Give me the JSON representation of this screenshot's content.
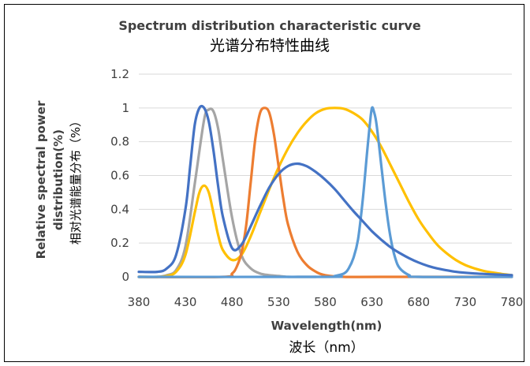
{
  "chart_data": {
    "type": "line",
    "title": "Spectrum distribution characteristic curve",
    "subtitle": "光谱分布特性曲线",
    "xlabel": "Wavelength(nm)",
    "xlabel_cn": "波长（nm）",
    "ylabel_line1": "Relative spectral power",
    "ylabel_line2": "distribution(%)",
    "ylabel_cn": "相对光谱能量分布（%）",
    "xlim": [
      380,
      780
    ],
    "ylim": [
      0,
      1.2
    ],
    "x_ticks": [
      "380",
      "430",
      "480",
      "530",
      "580",
      "630",
      "680",
      "730",
      "780"
    ],
    "y_ticks": [
      "0",
      "0.2",
      "0.4",
      "0.6",
      "0.8",
      "1",
      "1.2"
    ],
    "grid": "horizontal",
    "legend": "none",
    "colors": {
      "gray": "#a5a5a5",
      "yellow": "#ffc000",
      "orange": "#ed7d31",
      "light_blue": "#5b9bd5",
      "dark_blue": "#4472c4"
    },
    "series": [
      {
        "color": "#a5a5a5",
        "x": [
          380,
          400,
          410,
          420,
          430,
          440,
          450,
          455,
          460,
          465,
          470,
          480,
          490,
          500,
          510,
          520,
          530,
          540,
          550,
          560,
          570
        ],
        "y": [
          0,
          0,
          0.01,
          0.04,
          0.18,
          0.55,
          0.93,
          0.99,
          0.98,
          0.88,
          0.7,
          0.35,
          0.13,
          0.05,
          0.02,
          0.01,
          0.005,
          0,
          0,
          0,
          0
        ]
      },
      {
        "color": "#ffc000",
        "x": [
          380,
          400,
          410,
          420,
          430,
          440,
          445,
          450,
          455,
          460,
          465,
          470,
          480,
          490,
          500,
          510,
          520,
          530,
          540,
          550,
          560,
          570,
          580,
          590,
          600,
          610,
          620,
          630,
          640,
          650,
          660,
          670,
          680,
          690,
          700,
          710,
          720,
          730,
          740,
          750,
          760,
          770,
          780
        ],
        "y": [
          0,
          0,
          0.005,
          0.03,
          0.13,
          0.38,
          0.5,
          0.54,
          0.5,
          0.38,
          0.25,
          0.16,
          0.1,
          0.13,
          0.24,
          0.38,
          0.52,
          0.65,
          0.76,
          0.85,
          0.92,
          0.97,
          0.995,
          1.0,
          0.995,
          0.97,
          0.93,
          0.86,
          0.77,
          0.66,
          0.55,
          0.44,
          0.34,
          0.26,
          0.19,
          0.14,
          0.1,
          0.07,
          0.05,
          0.035,
          0.025,
          0.017,
          0.01
        ]
      },
      {
        "color": "#ed7d31",
        "x": [
          380,
          470,
          480,
          485,
          490,
          495,
          500,
          505,
          510,
          515,
          520,
          525,
          530,
          535,
          540,
          550,
          560,
          570,
          580,
          600,
          640,
          780
        ],
        "y": [
          0,
          0,
          0.02,
          0.06,
          0.14,
          0.3,
          0.56,
          0.82,
          0.97,
          1.0,
          0.97,
          0.84,
          0.65,
          0.46,
          0.31,
          0.15,
          0.07,
          0.03,
          0.01,
          0,
          0,
          0
        ]
      },
      {
        "color": "#5b9bd5",
        "x": [
          380,
          580,
          590,
          600,
          605,
          610,
          615,
          620,
          625,
          628,
          630,
          632,
          635,
          640,
          645,
          650,
          655,
          660,
          670,
          680,
          780
        ],
        "y": [
          0,
          0,
          0.005,
          0.02,
          0.05,
          0.11,
          0.22,
          0.45,
          0.75,
          0.92,
          1.0,
          0.98,
          0.9,
          0.66,
          0.42,
          0.23,
          0.11,
          0.05,
          0.01,
          0,
          0
        ]
      },
      {
        "color": "#4472c4",
        "x": [
          380,
          400,
          410,
          420,
          430,
          435,
          440,
          445,
          450,
          455,
          460,
          465,
          470,
          480,
          490,
          500,
          510,
          520,
          530,
          540,
          550,
          560,
          570,
          580,
          590,
          600,
          610,
          620,
          630,
          640,
          650,
          660,
          670,
          680,
          690,
          700,
          720,
          740,
          760,
          780
        ],
        "y": [
          0.03,
          0.03,
          0.05,
          0.13,
          0.4,
          0.65,
          0.9,
          1.0,
          1.0,
          0.92,
          0.75,
          0.54,
          0.36,
          0.17,
          0.19,
          0.3,
          0.42,
          0.53,
          0.61,
          0.656,
          0.67,
          0.655,
          0.62,
          0.575,
          0.52,
          0.455,
          0.39,
          0.33,
          0.27,
          0.22,
          0.175,
          0.14,
          0.11,
          0.085,
          0.065,
          0.05,
          0.03,
          0.02,
          0.015,
          0.01
        ]
      }
    ]
  }
}
